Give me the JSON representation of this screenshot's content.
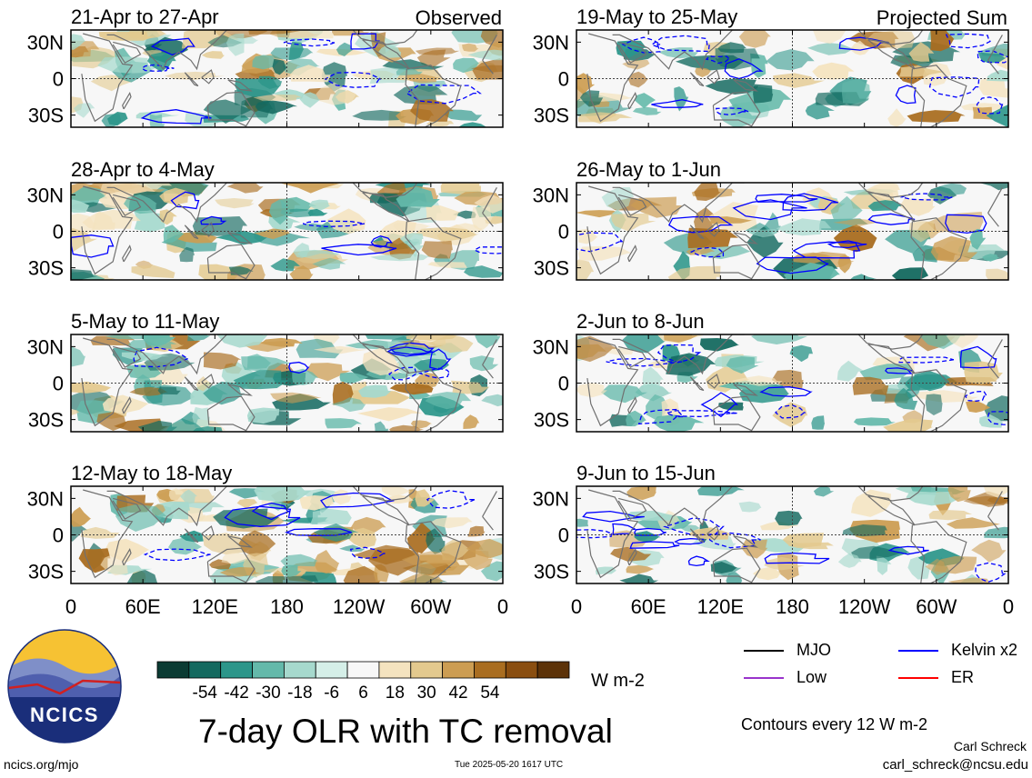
{
  "chart_data": {
    "type": "heatmap",
    "title": "7-day OLR with TC removal",
    "column_labels": [
      "Observed",
      "Projected Sum"
    ],
    "panels": [
      {
        "column": 0,
        "row": 0,
        "period": "21-Apr to 27-Apr"
      },
      {
        "column": 0,
        "row": 1,
        "period": "28-Apr to 4-May"
      },
      {
        "column": 0,
        "row": 2,
        "period": "5-May to 11-May"
      },
      {
        "column": 0,
        "row": 3,
        "period": "12-May to 18-May"
      },
      {
        "column": 1,
        "row": 0,
        "period": "19-May to 25-May"
      },
      {
        "column": 1,
        "row": 1,
        "period": "26-May to 1-Jun"
      },
      {
        "column": 1,
        "row": 2,
        "period": "2-Jun to 8-Jun"
      },
      {
        "column": 1,
        "row": 3,
        "period": "9-Jun to 15-Jun"
      }
    ],
    "y_ticks": [
      "30N",
      "0",
      "30S"
    ],
    "y_values": [
      30,
      0,
      -30
    ],
    "ylim": [
      -40,
      40
    ],
    "x_ticks": [
      "0",
      "60E",
      "120E",
      "180",
      "120W",
      "60W",
      "0"
    ],
    "x_values": [
      0,
      60,
      120,
      180,
      240,
      300,
      360
    ],
    "xlim": [
      0,
      360
    ],
    "colorbar": {
      "labels": [
        "-54",
        "-42",
        "-30",
        "-18",
        "-6",
        "6",
        "18",
        "30",
        "42",
        "54"
      ],
      "colors": [
        "#0b3b33",
        "#13695f",
        "#2c968a",
        "#64b9aa",
        "#a6d9cd",
        "#d5efe8",
        "#f7f7f7",
        "#f4e3bf",
        "#e3c98e",
        "#cc9d52",
        "#a96d20",
        "#8a4e10",
        "#5c3208"
      ],
      "unit": "W m-2"
    },
    "contours": {
      "note": "Contours every 12 W m-2",
      "legend": [
        {
          "name": "MJO",
          "color": "#000000"
        },
        {
          "name": "Kelvin x2",
          "color": "#0000ff"
        },
        {
          "name": "Low",
          "color": "#9933cc"
        },
        {
          "name": "ER",
          "color": "#ff0000"
        }
      ]
    },
    "grid": false
  },
  "footer": {
    "site": "ncics.org/mjo",
    "timestamp": "Tue 2025-05-20 1617 UTC",
    "author": "Carl Schreck",
    "email": "carl_schreck@ncsu.edu",
    "logo_text": "NCICS"
  }
}
